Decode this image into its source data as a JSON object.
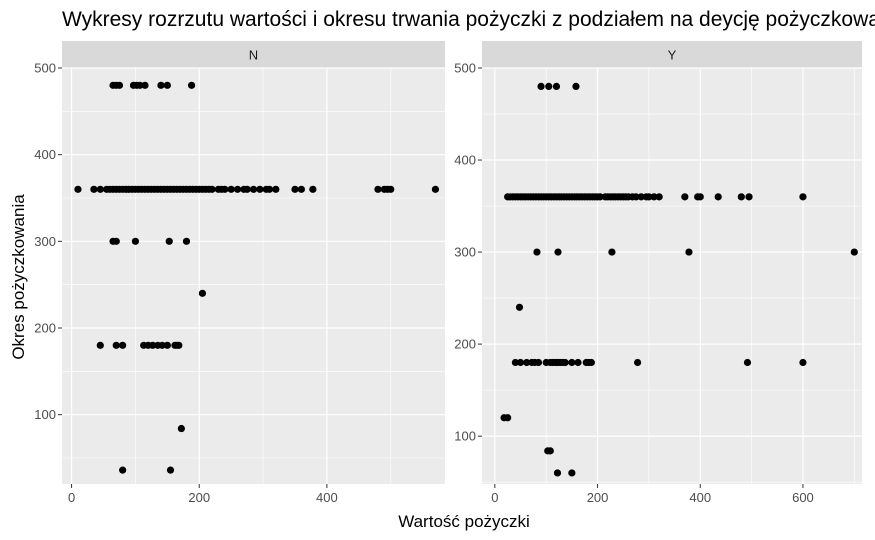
{
  "chart_data": {
    "type": "scatter",
    "title": "Wykresy rozrzutu wartości i okresu trwania pożyczki z podziałem na deycję pożyczkową",
    "xlabel": "Wartość pożyczki",
    "ylabel": "Okres pożyczkowania",
    "grid": true,
    "facets": [
      {
        "strip": "N",
        "xlim": [
          -15,
          585
        ],
        "ylim": [
          20,
          500
        ],
        "x_ticks": [
          0,
          200,
          400
        ],
        "y_ticks": [
          100,
          200,
          300,
          400,
          500
        ],
        "points": [
          [
            65,
            480
          ],
          [
            70,
            480
          ],
          [
            75,
            480
          ],
          [
            97,
            480
          ],
          [
            102,
            480
          ],
          [
            107,
            480
          ],
          [
            115,
            480
          ],
          [
            140,
            480
          ],
          [
            150,
            480
          ],
          [
            188,
            480
          ],
          [
            10,
            360
          ],
          [
            35,
            360
          ],
          [
            45,
            360
          ],
          [
            55,
            360
          ],
          [
            60,
            360
          ],
          [
            65,
            360
          ],
          [
            70,
            360
          ],
          [
            75,
            360
          ],
          [
            80,
            360
          ],
          [
            85,
            360
          ],
          [
            90,
            360
          ],
          [
            95,
            360
          ],
          [
            100,
            360
          ],
          [
            105,
            360
          ],
          [
            110,
            360
          ],
          [
            115,
            360
          ],
          [
            120,
            360
          ],
          [
            125,
            360
          ],
          [
            130,
            360
          ],
          [
            135,
            360
          ],
          [
            140,
            360
          ],
          [
            145,
            360
          ],
          [
            150,
            360
          ],
          [
            155,
            360
          ],
          [
            160,
            360
          ],
          [
            165,
            360
          ],
          [
            170,
            360
          ],
          [
            175,
            360
          ],
          [
            180,
            360
          ],
          [
            185,
            360
          ],
          [
            190,
            360
          ],
          [
            195,
            360
          ],
          [
            200,
            360
          ],
          [
            205,
            360
          ],
          [
            210,
            360
          ],
          [
            215,
            360
          ],
          [
            220,
            360
          ],
          [
            230,
            360
          ],
          [
            235,
            360
          ],
          [
            240,
            360
          ],
          [
            250,
            360
          ],
          [
            260,
            360
          ],
          [
            270,
            360
          ],
          [
            275,
            360
          ],
          [
            285,
            360
          ],
          [
            295,
            360
          ],
          [
            305,
            360
          ],
          [
            310,
            360
          ],
          [
            320,
            360
          ],
          [
            350,
            360
          ],
          [
            360,
            360
          ],
          [
            378,
            360
          ],
          [
            480,
            360
          ],
          [
            490,
            360
          ],
          [
            495,
            360
          ],
          [
            500,
            360
          ],
          [
            570,
            360
          ],
          [
            65,
            300
          ],
          [
            70,
            300
          ],
          [
            100,
            300
          ],
          [
            153,
            300
          ],
          [
            180,
            300
          ],
          [
            205,
            240
          ],
          [
            45,
            180
          ],
          [
            70,
            180
          ],
          [
            80,
            180
          ],
          [
            113,
            180
          ],
          [
            120,
            180
          ],
          [
            127,
            180
          ],
          [
            135,
            180
          ],
          [
            142,
            180
          ],
          [
            150,
            180
          ],
          [
            162,
            180
          ],
          [
            165,
            180
          ],
          [
            168,
            180
          ],
          [
            172,
            84
          ],
          [
            80,
            36
          ],
          [
            155,
            36
          ]
        ]
      },
      {
        "strip": "Y",
        "xlim": [
          -25,
          715
        ],
        "ylim": [
          48,
          500
        ],
        "x_ticks": [
          0,
          200,
          400,
          600
        ],
        "y_ticks": [
          100,
          200,
          300,
          400,
          500
        ],
        "points": [
          [
            90,
            480
          ],
          [
            105,
            480
          ],
          [
            120,
            480
          ],
          [
            158,
            480
          ],
          [
            25,
            360
          ],
          [
            30,
            360
          ],
          [
            35,
            360
          ],
          [
            40,
            360
          ],
          [
            45,
            360
          ],
          [
            50,
            360
          ],
          [
            55,
            360
          ],
          [
            60,
            360
          ],
          [
            65,
            360
          ],
          [
            70,
            360
          ],
          [
            75,
            360
          ],
          [
            80,
            360
          ],
          [
            85,
            360
          ],
          [
            90,
            360
          ],
          [
            95,
            360
          ],
          [
            100,
            360
          ],
          [
            105,
            360
          ],
          [
            110,
            360
          ],
          [
            115,
            360
          ],
          [
            120,
            360
          ],
          [
            125,
            360
          ],
          [
            130,
            360
          ],
          [
            135,
            360
          ],
          [
            140,
            360
          ],
          [
            145,
            360
          ],
          [
            150,
            360
          ],
          [
            155,
            360
          ],
          [
            160,
            360
          ],
          [
            165,
            360
          ],
          [
            170,
            360
          ],
          [
            175,
            360
          ],
          [
            180,
            360
          ],
          [
            185,
            360
          ],
          [
            190,
            360
          ],
          [
            195,
            360
          ],
          [
            200,
            360
          ],
          [
            205,
            360
          ],
          [
            215,
            360
          ],
          [
            220,
            360
          ],
          [
            225,
            360
          ],
          [
            230,
            360
          ],
          [
            235,
            360
          ],
          [
            240,
            360
          ],
          [
            245,
            360
          ],
          [
            250,
            360
          ],
          [
            255,
            360
          ],
          [
            260,
            360
          ],
          [
            268,
            360
          ],
          [
            275,
            360
          ],
          [
            285,
            360
          ],
          [
            295,
            360
          ],
          [
            300,
            360
          ],
          [
            310,
            360
          ],
          [
            320,
            360
          ],
          [
            370,
            360
          ],
          [
            395,
            360
          ],
          [
            400,
            360
          ],
          [
            435,
            360
          ],
          [
            480,
            360
          ],
          [
            495,
            360
          ],
          [
            600,
            360
          ],
          [
            82,
            300
          ],
          [
            123,
            300
          ],
          [
            228,
            300
          ],
          [
            378,
            300
          ],
          [
            700,
            300
          ],
          [
            48,
            240
          ],
          [
            40,
            180
          ],
          [
            50,
            180
          ],
          [
            62,
            180
          ],
          [
            72,
            180
          ],
          [
            78,
            180
          ],
          [
            85,
            180
          ],
          [
            100,
            180
          ],
          [
            108,
            180
          ],
          [
            113,
            180
          ],
          [
            118,
            180
          ],
          [
            122,
            180
          ],
          [
            127,
            180
          ],
          [
            132,
            180
          ],
          [
            137,
            180
          ],
          [
            150,
            180
          ],
          [
            162,
            180
          ],
          [
            178,
            180
          ],
          [
            183,
            180
          ],
          [
            188,
            180
          ],
          [
            278,
            180
          ],
          [
            492,
            180
          ],
          [
            600,
            180
          ],
          [
            18,
            120
          ],
          [
            25,
            120
          ],
          [
            103,
            84
          ],
          [
            108,
            84
          ],
          [
            122,
            60
          ],
          [
            150,
            60
          ]
        ]
      }
    ]
  },
  "colors": {
    "panel_bg": "#ebebeb",
    "grid_major": "#ffffff",
    "strip_bg": "#d9d9d9",
    "point": "#000000"
  }
}
